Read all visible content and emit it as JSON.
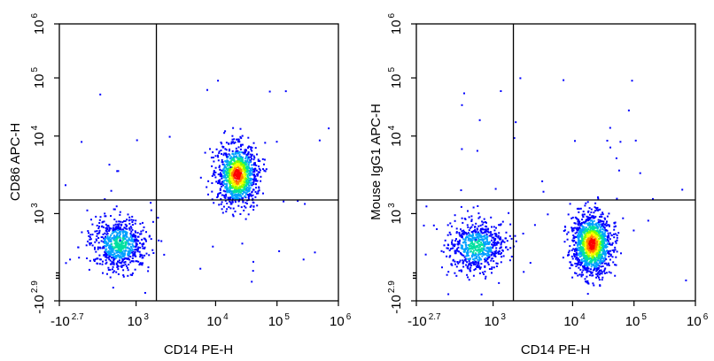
{
  "chart_data": [
    {
      "type": "scatter",
      "subtype": "flow-cytometry-density-dot-plot",
      "xlabel": "CD14 PE-H",
      "ylabel": "CD86 APC-H",
      "x_scale": "biexponential",
      "y_scale": "biexponential",
      "xlim": [
        "-10^2.7",
        "10^6"
      ],
      "ylim": [
        "-10^2.9",
        "10^6"
      ],
      "x_ticks": [
        {
          "base": "-10",
          "exp": "2.7",
          "value": -500
        },
        {
          "base": "10",
          "exp": "3",
          "value": 1000
        },
        {
          "base": "10",
          "exp": "4",
          "value": 10000
        },
        {
          "base": "10",
          "exp": "5",
          "value": 100000
        },
        {
          "base": "10",
          "exp": "6",
          "value": 1000000
        }
      ],
      "y_ticks": [
        {
          "base": "-10",
          "exp": "2.9",
          "value": -800
        },
        {
          "base": "10",
          "exp": "3",
          "value": 1000
        },
        {
          "base": "10",
          "exp": "4",
          "value": 10000
        },
        {
          "base": "10",
          "exp": "5",
          "value": 100000
        },
        {
          "base": "10",
          "exp": "6",
          "value": 1000000
        }
      ],
      "gate_x": 1800,
      "gate_y": 1500,
      "populations": [
        {
          "x_center": 300,
          "y_center": 450,
          "n": 700,
          "density": "medium"
        },
        {
          "x_center": 22000,
          "y_center": 3200,
          "n": 1100,
          "density": "high"
        }
      ],
      "grid": false,
      "legend": "none"
    },
    {
      "type": "scatter",
      "subtype": "flow-cytometry-density-dot-plot",
      "xlabel": "CD14 PE-H",
      "ylabel": "Mouse IgG1 APC-H",
      "x_scale": "biexponential",
      "y_scale": "biexponential",
      "xlim": [
        "-10^2.7",
        "10^6"
      ],
      "ylim": [
        "-10^2.9",
        "10^6"
      ],
      "x_ticks": [
        {
          "base": "-10",
          "exp": "2.7",
          "value": -500
        },
        {
          "base": "10",
          "exp": "3",
          "value": 1000
        },
        {
          "base": "10",
          "exp": "4",
          "value": 10000
        },
        {
          "base": "10",
          "exp": "5",
          "value": 100000
        },
        {
          "base": "10",
          "exp": "6",
          "value": 1000000
        }
      ],
      "y_ticks": [
        {
          "base": "-10",
          "exp": "2.9",
          "value": -800
        },
        {
          "base": "10",
          "exp": "3",
          "value": 1000
        },
        {
          "base": "10",
          "exp": "4",
          "value": 10000
        },
        {
          "base": "10",
          "exp": "5",
          "value": 100000
        },
        {
          "base": "10",
          "exp": "6",
          "value": 1000000
        }
      ],
      "gate_x": 1800,
      "gate_y": 1500,
      "populations": [
        {
          "x_center": 300,
          "y_center": 400,
          "n": 650,
          "density": "medium"
        },
        {
          "x_center": 20000,
          "y_center": 450,
          "n": 1300,
          "density": "high"
        }
      ],
      "grid": false,
      "legend": "none"
    }
  ],
  "density_colors": [
    "#0000ff",
    "#00a0ff",
    "#00e0a0",
    "#80ff00",
    "#ffff00",
    "#ff8000",
    "#ff0000"
  ]
}
